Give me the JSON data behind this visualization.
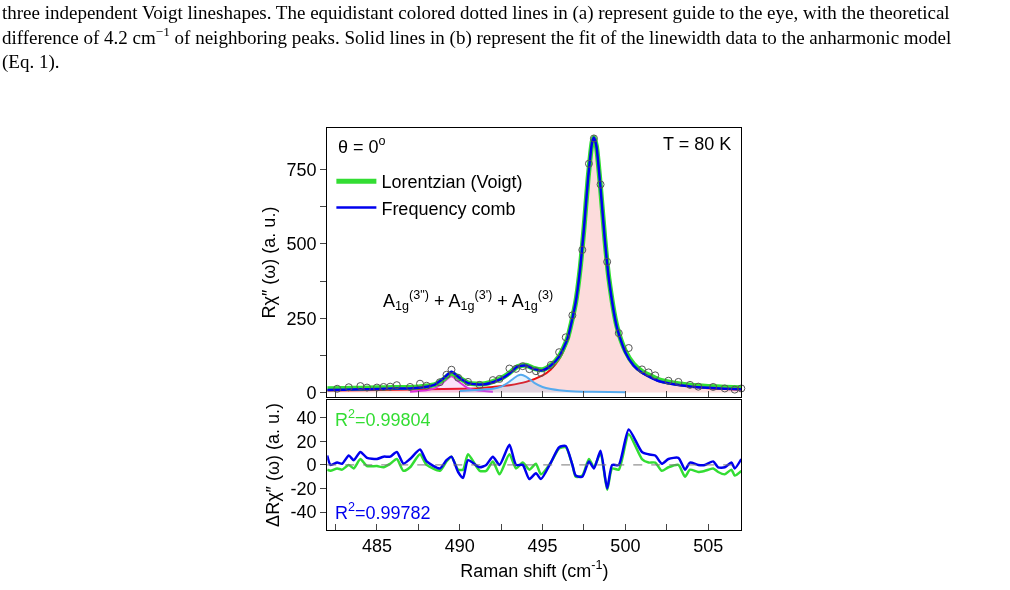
{
  "chart_data": [
    {
      "type": "line",
      "ylabel": "Rχ″ (ω) (a. u.)",
      "xlim": [
        482,
        507
      ],
      "ylim": [
        -15,
        890
      ],
      "legend": "top left",
      "tick_labels": "y",
      "xticks": [
        {
          "value": 482.5,
          "label": null
        },
        485,
        {
          "value": 487.5,
          "label": null
        },
        490,
        {
          "value": 492.5,
          "label": null
        },
        495,
        {
          "value": 497.5,
          "label": null
        },
        500,
        {
          "value": 502.5,
          "label": null
        },
        505
      ],
      "yticks": [
        0,
        {
          "value": 125,
          "label": null
        },
        250,
        {
          "value": 375,
          "label": null
        },
        500,
        {
          "value": 625,
          "label": null
        },
        750
      ],
      "annotations": [
        "three independent Voigt lineshapes. The equidistant colored dotted lines in (a) represent guide to the eye, with the theoretical\ndifference of 4.2 cm$^{−1}$ of neighboring peaks. Solid lines in (b) represent the fit of the linewidth data to the anharmonic model\n(Eq. 1).",
        "θ = 0$^{o}$",
        "T = 80 K",
        "A$_{1g}$$^{(3\")}$ + A$_{1g}$$^{(3')}$ + A$_{1g}$$^{(3)}$"
      ],
      "series": [
        {
          "type": "area",
          "color": "#ee1111",
          "x": [
            482,
            484,
            486,
            488,
            490,
            491,
            492,
            493,
            494,
            495,
            495.5,
            496,
            496.5,
            497,
            497.25,
            497.5,
            497.75,
            498,
            498.1,
            498.25,
            498.5,
            498.75,
            499,
            499.5,
            500,
            500.5,
            501,
            502,
            503,
            504,
            505,
            506,
            507
          ],
          "values": [
            7,
            8,
            10,
            11,
            13,
            14,
            19,
            25,
            36,
            58,
            78,
            112,
            175,
            299,
            404,
            549,
            719,
            842,
            855,
            826,
            685,
            517,
            380,
            215,
            133,
            90,
            66,
            39,
            27,
            20,
            15,
            12,
            10
          ]
        },
        {
          "type": "area",
          "color": "#dd33dd",
          "x": [
            487,
            488,
            488.5,
            489,
            489.5,
            490,
            490.5,
            491,
            492
          ],
          "values": [
            3,
            8,
            15,
            34,
            55,
            34,
            15,
            8,
            3
          ]
        },
        {
          "type": "area",
          "color": "#55aaee",
          "x": [
            490,
            491,
            491.5,
            492,
            492.5,
            493,
            493.5,
            493.7,
            494,
            494.5,
            495,
            495.5,
            496,
            497,
            498,
            500
          ],
          "values": [
            5,
            9,
            11,
            13,
            20,
            37,
            57,
            60,
            54,
            33,
            19,
            12,
            8,
            4,
            3,
            1
          ]
        },
        {
          "type": "scatter",
          "marker": "circle",
          "color": "#555555",
          "x": [
            482.6,
            483.3,
            484.0,
            484.4,
            485.0,
            485.4,
            485.8,
            486.2,
            487.0,
            487.6,
            488.0,
            488.8,
            489.2,
            489.5,
            489.9,
            490.5,
            491.2,
            492.0,
            492.4,
            493.0,
            493.4,
            493.8,
            494.2,
            494.6,
            494.9,
            495.5,
            496.0,
            496.4,
            496.8,
            497.4,
            497.8,
            498.1,
            498.5,
            498.9,
            499.6,
            500.2,
            501.0,
            501.4,
            501.8,
            502.6,
            503.2,
            503.9,
            504.4,
            505.3,
            506.0,
            506.6,
            507.0
          ],
          "values": [
            13,
            18,
            22,
            17,
            17,
            19,
            20,
            25,
            19,
            30,
            23,
            35,
            60,
            77,
            50,
            36,
            26,
            42,
            46,
            81,
            80,
            89,
            79,
            72,
            66,
            93,
            136,
            186,
            260,
            480,
            770,
            855,
            700,
            440,
            200,
            150,
            78,
            68,
            58,
            40,
            36,
            26,
            20,
            19,
            14,
            10,
            14
          ]
        },
        {
          "name": "Lorentzian (Voigt)",
          "color": "#33dd33",
          "x": [
            482,
            483,
            484,
            485,
            486,
            487,
            488,
            488.5,
            489,
            489.5,
            490,
            490.5,
            491,
            491.5,
            492,
            492.5,
            493,
            493.5,
            494,
            494.5,
            495,
            495.5,
            496,
            496.5,
            497,
            497.25,
            497.5,
            497.75,
            498,
            498.1,
            498.25,
            498.5,
            498.75,
            499,
            499.5,
            500,
            500.5,
            501,
            502,
            503,
            504,
            505,
            506,
            507
          ],
          "values": [
            13,
            14,
            15,
            16,
            17,
            17,
            22,
            27,
            44,
            65,
            49,
            33,
            29,
            30,
            37,
            48,
            66,
            88,
            92,
            81,
            77,
            92,
            122,
            182,
            304,
            408,
            553,
            722,
            845,
            858,
            829,
            688,
            522,
            385,
            220,
            140,
            96,
            72,
            44,
            32,
            25,
            21,
            18,
            16
          ]
        },
        {
          "name": "Frequency comb",
          "color": "#0000ee",
          "x": [
            482,
            483,
            484,
            485,
            486,
            487,
            488,
            488.5,
            489,
            489.5,
            490,
            490.5,
            491,
            491.5,
            492,
            492.5,
            493,
            493.5,
            494,
            494.5,
            495,
            495.5,
            496,
            496.5,
            497,
            497.25,
            497.5,
            497.75,
            498,
            498.1,
            498.25,
            498.5,
            498.75,
            499,
            499.5,
            500,
            500.5,
            501,
            502,
            503,
            504,
            505,
            506,
            507
          ],
          "values": [
            9,
            10,
            11,
            12,
            14,
            14,
            20,
            27,
            47,
            70,
            49,
            32,
            28,
            28,
            35,
            46,
            64,
            88,
            91,
            79,
            75,
            91,
            121,
            181,
            304,
            408,
            553,
            722,
            845,
            858,
            829,
            688,
            520,
            383,
            217,
            135,
            91,
            67,
            39,
            27,
            20,
            16,
            13,
            11
          ]
        }
      ]
    },
    {
      "type": "line",
      "ylabel": "ΔRχ″ (ω) (a. u.)",
      "xlabel": "Raman shift (cm$^{-1}$)",
      "xlim": [
        482,
        507
      ],
      "ylim": [
        -55,
        55
      ],
      "xticks": [
        {
          "value": 482.5,
          "label": null
        },
        485,
        {
          "value": 487.5,
          "label": null
        },
        490,
        {
          "value": 492.5,
          "label": null
        },
        495,
        {
          "value": 497.5,
          "label": null
        },
        500,
        {
          "value": 502.5,
          "label": null
        },
        505
      ],
      "yticks": [
        -40,
        -20,
        0,
        20,
        40
      ],
      "ref_lines": [
        {
          "axis": "y",
          "value": 0,
          "color": "#777777",
          "line_style": "dashed"
        }
      ],
      "annotations": [
        "R$^{2}$=0.99804",
        "R$^{2}$=0.99782"
      ],
      "x": [
        482.0,
        482.2,
        482.6,
        482.9,
        483.3,
        483.6,
        484.0,
        484.4,
        485.0,
        485.4,
        485.8,
        486.2,
        486.6,
        487.0,
        487.6,
        488.0,
        488.8,
        489.2,
        489.5,
        489.9,
        490.2,
        490.5,
        491.2,
        491.6,
        492.0,
        492.4,
        493.0,
        493.4,
        493.8,
        494.2,
        494.6,
        494.9,
        495.5,
        496.0,
        496.4,
        496.8,
        497.0,
        497.4,
        497.8,
        498.1,
        498.5,
        498.9,
        499.2,
        499.6,
        500.2,
        501.0,
        501.4,
        501.8,
        502.2,
        502.6,
        503.2,
        503.6,
        503.9,
        504.4,
        504.8,
        505.3,
        505.6,
        506.0,
        506.4,
        506.6,
        507.0
      ],
      "series": [
        {
          "color": "#33dd33",
          "values": [
            -4,
            -5,
            -3,
            -4,
            0,
            -3,
            5,
            -1,
            -1,
            -2,
            1,
            5,
            -5,
            -2,
            9,
            0,
            -5,
            3,
            7,
            -4,
            -4,
            9,
            -5,
            -5,
            3,
            -8,
            9,
            -3,
            2,
            -4,
            1,
            -8,
            2,
            14,
            15,
            0,
            -10,
            -9,
            5,
            -2,
            10,
            -21,
            -3,
            -4,
            26,
            5,
            2,
            2,
            -5,
            -2,
            0,
            -10,
            -4,
            -6,
            -5,
            -3,
            -6,
            -8,
            -4,
            -9,
            -5
          ]
        },
        {
          "color": "#0000ee",
          "values": [
            8,
            0,
            2,
            1,
            8,
            4,
            11,
            6,
            5,
            7,
            7,
            11,
            1,
            5,
            13,
            3,
            -3,
            4,
            7,
            -6,
            -11,
            4,
            -2,
            0,
            7,
            0,
            17,
            0,
            0,
            -12,
            -7,
            -12,
            2,
            15,
            16,
            0,
            -9,
            -10,
            3,
            -3,
            12,
            -20,
            0,
            0,
            30,
            11,
            9,
            8,
            1,
            5,
            6,
            -4,
            2,
            0,
            0,
            3,
            -2,
            -2,
            2,
            -3,
            5
          ]
        }
      ]
    }
  ]
}
